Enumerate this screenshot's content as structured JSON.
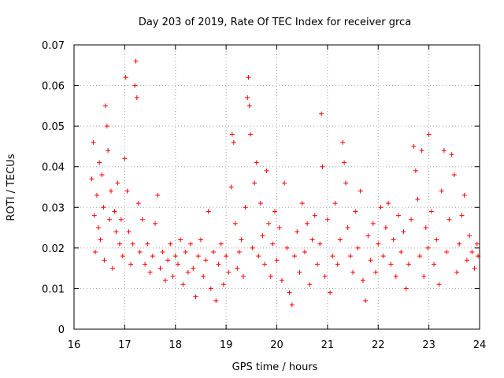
{
  "chart_data": {
    "type": "scatter",
    "title": "Day 203 of 2019, Rate Of TEC Index for receiver grca",
    "xlabel": "GPS time / hours",
    "ylabel": "ROTI / TECUs",
    "xlim": [
      16,
      24
    ],
    "ylim": [
      0,
      0.07
    ],
    "xticks": [
      "16",
      "17",
      "18",
      "19",
      "20",
      "21",
      "22",
      "23",
      "24"
    ],
    "yticks": [
      "0",
      "0.01",
      "0.02",
      "0.03",
      "0.04",
      "0.05",
      "0.06",
      "0.07"
    ],
    "grid": true,
    "marker": "plus",
    "series": [
      {
        "color": "#ff0000",
        "points": [
          [
            16.35,
            0.037
          ],
          [
            16.38,
            0.046
          ],
          [
            16.4,
            0.028
          ],
          [
            16.42,
            0.019
          ],
          [
            16.45,
            0.033
          ],
          [
            16.48,
            0.025
          ],
          [
            16.5,
            0.041
          ],
          [
            16.52,
            0.022
          ],
          [
            16.55,
            0.038
          ],
          [
            16.58,
            0.03
          ],
          [
            16.6,
            0.017
          ],
          [
            16.62,
            0.055
          ],
          [
            16.65,
            0.05
          ],
          [
            16.67,
            0.044
          ],
          [
            16.7,
            0.027
          ],
          [
            16.73,
            0.034
          ],
          [
            16.76,
            0.015
          ],
          [
            16.8,
            0.029
          ],
          [
            16.83,
            0.024
          ],
          [
            16.86,
            0.036
          ],
          [
            16.9,
            0.021
          ],
          [
            16.93,
            0.027
          ],
          [
            16.96,
            0.018
          ],
          [
            17.0,
            0.042
          ],
          [
            17.02,
            0.062
          ],
          [
            17.05,
            0.034
          ],
          [
            17.08,
            0.024
          ],
          [
            17.12,
            0.016
          ],
          [
            17.16,
            0.021
          ],
          [
            17.2,
            0.06
          ],
          [
            17.22,
            0.066
          ],
          [
            17.24,
            0.057
          ],
          [
            17.27,
            0.031
          ],
          [
            17.3,
            0.019
          ],
          [
            17.35,
            0.027
          ],
          [
            17.4,
            0.016
          ],
          [
            17.45,
            0.021
          ],
          [
            17.5,
            0.014
          ],
          [
            17.55,
            0.018
          ],
          [
            17.6,
            0.026
          ],
          [
            17.65,
            0.033
          ],
          [
            17.7,
            0.015
          ],
          [
            17.75,
            0.019
          ],
          [
            17.8,
            0.012
          ],
          [
            17.85,
            0.017
          ],
          [
            17.9,
            0.021
          ],
          [
            17.95,
            0.013
          ],
          [
            18.0,
            0.018
          ],
          [
            18.05,
            0.016
          ],
          [
            18.1,
            0.022
          ],
          [
            18.15,
            0.011
          ],
          [
            18.2,
            0.019
          ],
          [
            18.25,
            0.014
          ],
          [
            18.3,
            0.021
          ],
          [
            18.35,
            0.015
          ],
          [
            18.4,
            0.008
          ],
          [
            18.45,
            0.018
          ],
          [
            18.5,
            0.022
          ],
          [
            18.55,
            0.013
          ],
          [
            18.6,
            0.017
          ],
          [
            18.65,
            0.029
          ],
          [
            18.7,
            0.01
          ],
          [
            18.75,
            0.019
          ],
          [
            18.8,
            0.007
          ],
          [
            18.85,
            0.016
          ],
          [
            18.9,
            0.021
          ],
          [
            18.95,
            0.011
          ],
          [
            19.0,
            0.018
          ],
          [
            19.05,
            0.014
          ],
          [
            19.1,
            0.035
          ],
          [
            19.12,
            0.048
          ],
          [
            19.15,
            0.046
          ],
          [
            19.18,
            0.026
          ],
          [
            19.22,
            0.015
          ],
          [
            19.26,
            0.019
          ],
          [
            19.3,
            0.022
          ],
          [
            19.34,
            0.013
          ],
          [
            19.38,
            0.03
          ],
          [
            19.42,
            0.057
          ],
          [
            19.44,
            0.062
          ],
          [
            19.46,
            0.055
          ],
          [
            19.48,
            0.048
          ],
          [
            19.52,
            0.02
          ],
          [
            19.56,
            0.036
          ],
          [
            19.6,
            0.041
          ],
          [
            19.64,
            0.018
          ],
          [
            19.68,
            0.031
          ],
          [
            19.72,
            0.023
          ],
          [
            19.76,
            0.016
          ],
          [
            19.8,
            0.039
          ],
          [
            19.84,
            0.026
          ],
          [
            19.88,
            0.013
          ],
          [
            19.92,
            0.021
          ],
          [
            19.96,
            0.029
          ],
          [
            20.0,
            0.017
          ],
          [
            20.05,
            0.025
          ],
          [
            20.1,
            0.012
          ],
          [
            20.15,
            0.036
          ],
          [
            20.2,
            0.02
          ],
          [
            20.25,
            0.009
          ],
          [
            20.3,
            0.006
          ],
          [
            20.35,
            0.018
          ],
          [
            20.4,
            0.024
          ],
          [
            20.45,
            0.014
          ],
          [
            20.5,
            0.031
          ],
          [
            20.55,
            0.019
          ],
          [
            20.6,
            0.026
          ],
          [
            20.65,
            0.011
          ],
          [
            20.7,
            0.022
          ],
          [
            20.75,
            0.028
          ],
          [
            20.8,
            0.016
          ],
          [
            20.85,
            0.021
          ],
          [
            20.88,
            0.053
          ],
          [
            20.9,
            0.04
          ],
          [
            20.95,
            0.013
          ],
          [
            21.0,
            0.027
          ],
          [
            21.05,
            0.009
          ],
          [
            21.1,
            0.018
          ],
          [
            21.15,
            0.031
          ],
          [
            21.2,
            0.016
          ],
          [
            21.25,
            0.022
          ],
          [
            21.3,
            0.046
          ],
          [
            21.33,
            0.041
          ],
          [
            21.36,
            0.036
          ],
          [
            21.4,
            0.025
          ],
          [
            21.45,
            0.018
          ],
          [
            21.5,
            0.014
          ],
          [
            21.55,
            0.029
          ],
          [
            21.6,
            0.02
          ],
          [
            21.65,
            0.034
          ],
          [
            21.7,
            0.012
          ],
          [
            21.75,
            0.007
          ],
          [
            21.8,
            0.023
          ],
          [
            21.85,
            0.017
          ],
          [
            21.9,
            0.026
          ],
          [
            21.95,
            0.014
          ],
          [
            22.0,
            0.021
          ],
          [
            22.05,
            0.03
          ],
          [
            22.1,
            0.018
          ],
          [
            22.15,
            0.025
          ],
          [
            22.2,
            0.031
          ],
          [
            22.25,
            0.016
          ],
          [
            22.3,
            0.022
          ],
          [
            22.35,
            0.013
          ],
          [
            22.4,
            0.028
          ],
          [
            22.45,
            0.019
          ],
          [
            22.5,
            0.024
          ],
          [
            22.55,
            0.01
          ],
          [
            22.6,
            0.016
          ],
          [
            22.65,
            0.027
          ],
          [
            22.7,
            0.045
          ],
          [
            22.74,
            0.039
          ],
          [
            22.78,
            0.032
          ],
          [
            22.82,
            0.018
          ],
          [
            22.86,
            0.044
          ],
          [
            22.9,
            0.013
          ],
          [
            22.94,
            0.025
          ],
          [
            22.98,
            0.02
          ],
          [
            23.0,
            0.048
          ],
          [
            23.05,
            0.029
          ],
          [
            23.1,
            0.016
          ],
          [
            23.15,
            0.022
          ],
          [
            23.2,
            0.011
          ],
          [
            23.25,
            0.034
          ],
          [
            23.3,
            0.044
          ],
          [
            23.35,
            0.019
          ],
          [
            23.4,
            0.027
          ],
          [
            23.45,
            0.043
          ],
          [
            23.5,
            0.038
          ],
          [
            23.55,
            0.014
          ],
          [
            23.6,
            0.021
          ],
          [
            23.65,
            0.028
          ],
          [
            23.7,
            0.033
          ],
          [
            23.75,
            0.017
          ],
          [
            23.8,
            0.023
          ],
          [
            23.85,
            0.019
          ],
          [
            23.9,
            0.015
          ],
          [
            23.95,
            0.021
          ],
          [
            23.97,
            0.018
          ]
        ]
      }
    ]
  }
}
